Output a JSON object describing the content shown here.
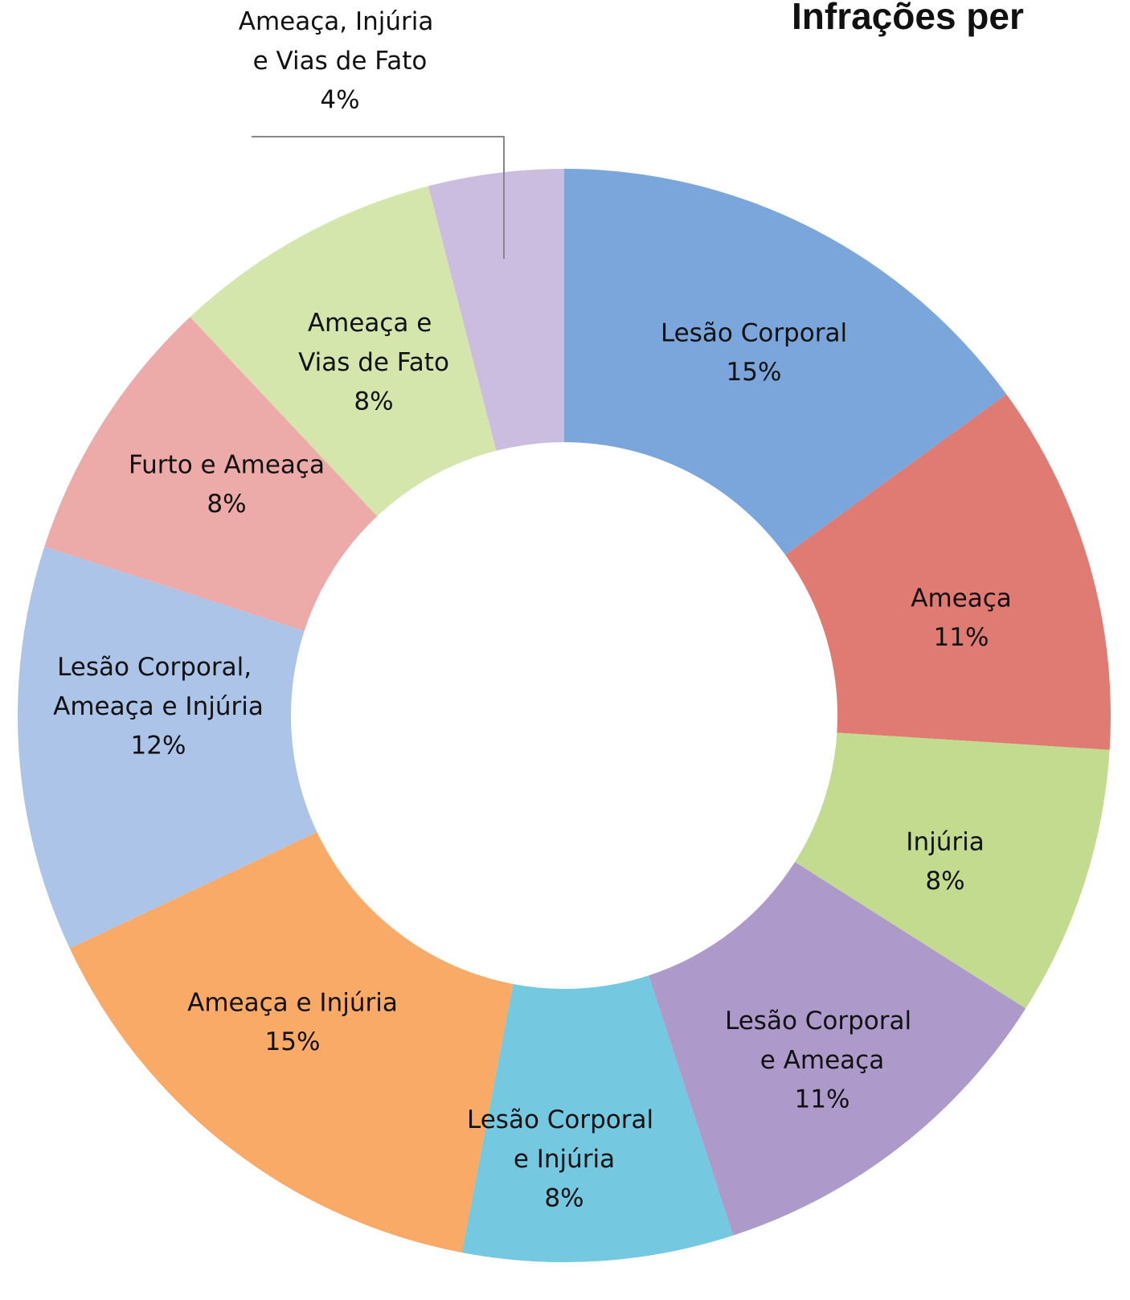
{
  "chart_data": {
    "type": "donut",
    "title": "Infrações per",
    "categories": [
      "Lesão Corporal",
      "Ameaça",
      "Injúria",
      "Lesão Corporal e Ameaça",
      "Lesão Corporal e Injúria",
      "Ameaça e Injúria",
      "Lesão Corporal, Ameaça e Injúria",
      "Furto e Ameaça",
      "Ameaça e Vias de Fato",
      "Ameaça, Injúria e Vias de Fato"
    ],
    "values": [
      15,
      11,
      8,
      11,
      8,
      15,
      12,
      8,
      8,
      4
    ],
    "value_labels": [
      "15%",
      "11%",
      "8%",
      "11%",
      "8%",
      "15%",
      "12%",
      "8%",
      "8%",
      "4%"
    ],
    "colors": [
      "#7aa6dc",
      "#e07b73",
      "#c2db8e",
      "#ad9acb",
      "#74c8e0",
      "#f9aa66",
      "#abc4e8",
      "#ecaaa8",
      "#d5e6ad",
      "#cbbde0"
    ]
  }
}
